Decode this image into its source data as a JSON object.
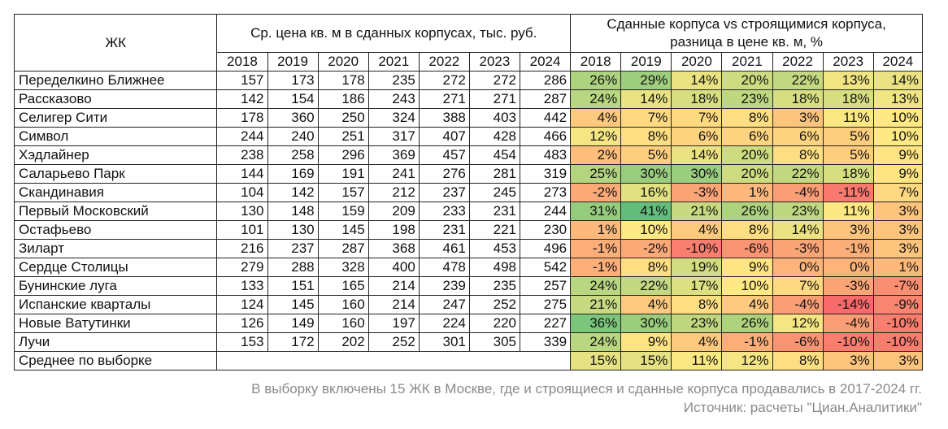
{
  "table": {
    "col_name_header": "ЖК",
    "group_price": "Ср. цена кв. м в сданных корпусах, тыс. руб.",
    "group_diff": "Сданные корпуса vs строящимися корпуса, разница в цене кв. м, %",
    "years": [
      "2018",
      "2019",
      "2020",
      "2021",
      "2022",
      "2023",
      "2024"
    ],
    "rows": [
      {
        "name": "Переделкино Ближнее",
        "prices": [
          "157",
          "173",
          "178",
          "235",
          "272",
          "272",
          "286"
        ],
        "diffs": [
          "26%",
          "29%",
          "14%",
          "20%",
          "22%",
          "13%",
          "14%"
        ]
      },
      {
        "name": "Рассказово",
        "prices": [
          "142",
          "154",
          "186",
          "243",
          "271",
          "271",
          "287"
        ],
        "diffs": [
          "24%",
          "14%",
          "18%",
          "23%",
          "18%",
          "18%",
          "13%"
        ]
      },
      {
        "name": "Селигер Сити",
        "prices": [
          "178",
          "360",
          "250",
          "324",
          "388",
          "403",
          "442"
        ],
        "diffs": [
          "4%",
          "7%",
          "7%",
          "8%",
          "3%",
          "11%",
          "10%"
        ]
      },
      {
        "name": "Символ",
        "prices": [
          "244",
          "240",
          "251",
          "317",
          "407",
          "428",
          "466"
        ],
        "diffs": [
          "12%",
          "8%",
          "6%",
          "6%",
          "6%",
          "5%",
          "10%"
        ]
      },
      {
        "name": "Хэдлайнер",
        "prices": [
          "238",
          "258",
          "296",
          "369",
          "457",
          "454",
          "483"
        ],
        "diffs": [
          "2%",
          "5%",
          "14%",
          "20%",
          "8%",
          "5%",
          "9%"
        ]
      },
      {
        "name": "Саларьево Парк",
        "prices": [
          "144",
          "169",
          "191",
          "241",
          "276",
          "281",
          "319"
        ],
        "diffs": [
          "25%",
          "30%",
          "30%",
          "20%",
          "22%",
          "18%",
          "9%"
        ]
      },
      {
        "name": "Скандинавия",
        "prices": [
          "104",
          "142",
          "157",
          "212",
          "237",
          "245",
          "273"
        ],
        "diffs": [
          "-2%",
          "16%",
          "-3%",
          "1%",
          "-4%",
          "-11%",
          "7%"
        ]
      },
      {
        "name": "Первый Московский",
        "prices": [
          "130",
          "148",
          "159",
          "209",
          "233",
          "231",
          "244"
        ],
        "diffs": [
          "31%",
          "41%",
          "21%",
          "26%",
          "23%",
          "11%",
          "3%"
        ]
      },
      {
        "name": "Остафьево",
        "prices": [
          "101",
          "130",
          "145",
          "198",
          "231",
          "221",
          "230"
        ],
        "diffs": [
          "1%",
          "10%",
          "4%",
          "8%",
          "14%",
          "3%",
          "3%"
        ]
      },
      {
        "name": "Зиларт",
        "prices": [
          "216",
          "237",
          "287",
          "368",
          "461",
          "453",
          "496"
        ],
        "diffs": [
          "-1%",
          "-2%",
          "-10%",
          "-6%",
          "-3%",
          "-1%",
          "3%"
        ]
      },
      {
        "name": "Сердце Столицы",
        "prices": [
          "279",
          "288",
          "328",
          "400",
          "478",
          "498",
          "542"
        ],
        "diffs": [
          "-1%",
          "8%",
          "19%",
          "9%",
          "0%",
          "0%",
          "1%"
        ]
      },
      {
        "name": "Бунинские луга",
        "prices": [
          "133",
          "151",
          "165",
          "214",
          "239",
          "235",
          "257"
        ],
        "diffs": [
          "24%",
          "22%",
          "17%",
          "10%",
          "7%",
          "-3%",
          "-7%"
        ]
      },
      {
        "name": "Испанские кварталы",
        "prices": [
          "124",
          "145",
          "160",
          "214",
          "247",
          "252",
          "275"
        ],
        "diffs": [
          "21%",
          "4%",
          "8%",
          "4%",
          "-4%",
          "-14%",
          "-9%"
        ]
      },
      {
        "name": "Новые Ватутинки",
        "prices": [
          "126",
          "149",
          "160",
          "197",
          "224",
          "220",
          "227"
        ],
        "diffs": [
          "36%",
          "30%",
          "23%",
          "26%",
          "12%",
          "-4%",
          "-10%"
        ]
      },
      {
        "name": "Лучи",
        "prices": [
          "153",
          "172",
          "202",
          "252",
          "301",
          "305",
          "339"
        ],
        "diffs": [
          "24%",
          "9%",
          "4%",
          "-1%",
          "-6%",
          "-10%",
          "-10%"
        ]
      }
    ],
    "average": {
      "name": "Среднее по выборке",
      "diffs": [
        "15%",
        "15%",
        "11%",
        "12%",
        "8%",
        "3%",
        "3%"
      ]
    }
  },
  "colors": {
    "strong_green": "#63be7b",
    "yellow": "#ffe984",
    "red": "#f8696b",
    "border": "#222222"
  },
  "footnote": {
    "line1": "В выборку включены 15 ЖК в Москве, где и строящиеся и сданные корпуса продавались в 2017-2024 гг.",
    "line2": "Источник: расчеты \"Циан.Аналитики\""
  }
}
